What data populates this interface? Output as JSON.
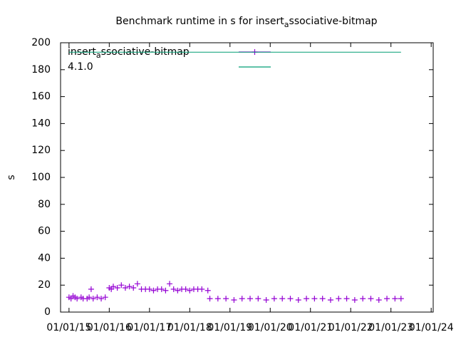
{
  "chart_data": {
    "type": "scatter",
    "title": "Benchmark runtime in s for insert_associative-bitmap",
    "y_label": "s",
    "xlim": [
      2014.79,
      2024.05
    ],
    "xticks": [
      {
        "value": 2015,
        "label": "01/01/15"
      },
      {
        "value": 2016,
        "label": "01/01/16"
      },
      {
        "value": 2017,
        "label": "01/01/17"
      },
      {
        "value": 2018,
        "label": "01/01/18"
      },
      {
        "value": 2019,
        "label": "01/01/19"
      },
      {
        "value": 2020,
        "label": "01/01/20"
      },
      {
        "value": 2021,
        "label": "01/01/21"
      },
      {
        "value": 2022,
        "label": "01/01/22"
      },
      {
        "value": 2023,
        "label": "01/01/23"
      },
      {
        "value": 2024,
        "label": "01/01/24"
      }
    ],
    "ylim": [
      0,
      200
    ],
    "yticks": [
      0,
      20,
      40,
      60,
      80,
      100,
      120,
      140,
      160,
      180,
      200
    ],
    "series": [
      {
        "name": "insert_associative-bitmap",
        "color": "#9400d3",
        "style": "points",
        "x": [
          2015.0,
          2015.05,
          2015.1,
          2015.15,
          2015.2,
          2015.3,
          2015.35,
          2015.45,
          2015.5,
          2015.55,
          2015.6,
          2015.7,
          2015.8,
          2015.9,
          2016.0,
          2016.05,
          2016.1,
          2016.2,
          2016.3,
          2016.4,
          2016.5,
          2016.6,
          2016.7,
          2016.8,
          2016.9,
          2017.0,
          2017.1,
          2017.2,
          2017.3,
          2017.4,
          2017.5,
          2017.6,
          2017.7,
          2017.8,
          2017.9,
          2018.0,
          2018.1,
          2018.2,
          2018.3,
          2018.45,
          2018.5,
          2018.7,
          2018.9,
          2019.1,
          2019.3,
          2019.5,
          2019.7,
          2019.9,
          2020.1,
          2020.3,
          2020.5,
          2020.7,
          2020.9,
          2021.1,
          2021.3,
          2021.5,
          2021.7,
          2021.9,
          2022.1,
          2022.3,
          2022.5,
          2022.7,
          2022.9,
          2023.1,
          2023.25
        ],
        "values": [
          11,
          10,
          12,
          11,
          10,
          11,
          10,
          10,
          11,
          17,
          10,
          11,
          10,
          11,
          18,
          17,
          19,
          18,
          20,
          18,
          19,
          18,
          21,
          17,
          17,
          17,
          16,
          17,
          17,
          16,
          21,
          17,
          16,
          17,
          17,
          16,
          17,
          17,
          17,
          16,
          10,
          10,
          10,
          9,
          10,
          10,
          10,
          9,
          10,
          10,
          10,
          9,
          10,
          10,
          10,
          9,
          10,
          10,
          9,
          10,
          10,
          9,
          10,
          10,
          10
        ]
      },
      {
        "name": "4.1.0",
        "color": "#009e73",
        "style": "line",
        "x": [
          2015.0,
          2023.25
        ],
        "values": [
          193,
          193
        ]
      }
    ]
  }
}
